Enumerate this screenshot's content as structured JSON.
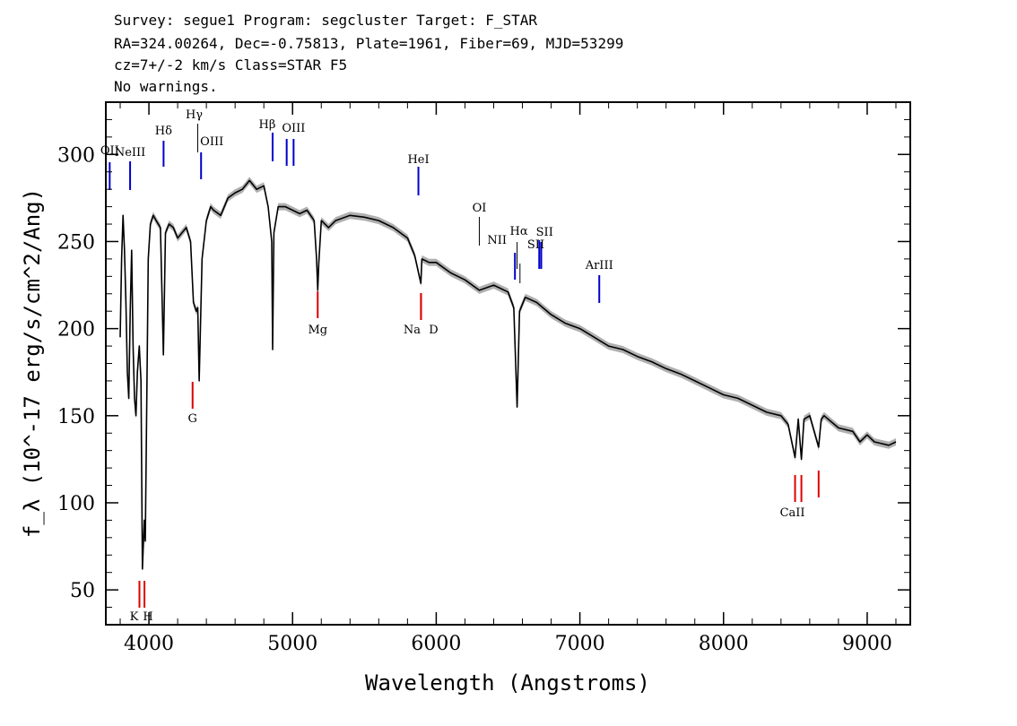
{
  "header": {
    "line1": "Survey: segue1 Program: segcluster Target: F_STAR",
    "line2": "RA=324.00264, Dec=-0.75813, Plate=1961, Fiber=69, MJD=53299",
    "line3": "cz=7+/-2 km/s Class=STAR F5",
    "line4": "No warnings."
  },
  "chart_data": {
    "type": "line",
    "title": "",
    "xlabel": "Wavelength (Angstroms)",
    "ylabel": "f_λ (10^-17 erg/s/cm^2/Ang)",
    "xlim": [
      3700,
      9300
    ],
    "ylim": [
      30,
      330
    ],
    "xticks": [
      4000,
      5000,
      6000,
      7000,
      8000,
      9000
    ],
    "yticks": [
      50,
      100,
      150,
      200,
      250,
      300
    ],
    "grid": false,
    "legend": "none",
    "colors": {
      "spectrum": "#000000",
      "error_band": "#b0b0b0",
      "emission": "#0000cc",
      "absorption": "#dd0000"
    },
    "series": [
      {
        "x": [
          3800,
          3810,
          3820,
          3830,
          3840,
          3850,
          3860,
          3870,
          3880,
          3890,
          3900,
          3910,
          3920,
          3933,
          3945,
          3955,
          3968,
          3975,
          3985,
          3995,
          4010,
          4030,
          4050,
          4080,
          4101,
          4115,
          4140,
          4170,
          4200,
          4230,
          4260,
          4290,
          4310,
          4330,
          4340,
          4350,
          4370,
          4400,
          4430,
          4450,
          4500,
          4550,
          4600,
          4650,
          4700,
          4750,
          4800,
          4830,
          4855,
          4861,
          4870,
          4900,
          4950,
          5000,
          5050,
          5100,
          5150,
          5167,
          5175,
          5183,
          5200,
          5250,
          5300,
          5400,
          5500,
          5600,
          5700,
          5800,
          5850,
          5893,
          5900,
          5950,
          6000,
          6100,
          6200,
          6300,
          6400,
          6500,
          6540,
          6563,
          6580,
          6620,
          6700,
          6800,
          6900,
          7000,
          7100,
          7200,
          7300,
          7400,
          7500,
          7600,
          7700,
          7800,
          7900,
          8000,
          8100,
          8200,
          8300,
          8400,
          8450,
          8498,
          8520,
          8542,
          8560,
          8600,
          8662,
          8680,
          8700,
          8800,
          8900,
          8950,
          9000,
          9050,
          9100,
          9150,
          9200
        ],
        "values": [
          195,
          240,
          265,
          245,
          215,
          175,
          160,
          210,
          245,
          190,
          160,
          150,
          175,
          190,
          170,
          62,
          90,
          78,
          160,
          240,
          260,
          265,
          262,
          258,
          185,
          255,
          260,
          258,
          252,
          255,
          258,
          250,
          215,
          210,
          212,
          170,
          240,
          262,
          270,
          268,
          265,
          275,
          278,
          280,
          285,
          280,
          282,
          270,
          250,
          188,
          255,
          270,
          270,
          268,
          266,
          268,
          262,
          240,
          222,
          238,
          262,
          258,
          262,
          265,
          264,
          262,
          258,
          252,
          242,
          226,
          240,
          238,
          238,
          232,
          228,
          222,
          225,
          221,
          212,
          155,
          210,
          218,
          215,
          208,
          203,
          200,
          195,
          190,
          188,
          184,
          181,
          177,
          174,
          170,
          166,
          162,
          160,
          156,
          152,
          150,
          145,
          126,
          148,
          125,
          148,
          150,
          132,
          148,
          150,
          143,
          141,
          135,
          139,
          135,
          134,
          133,
          135
        ]
      }
    ],
    "emission_lines": [
      {
        "label": "OII",
        "wavelength": 3727
      },
      {
        "label": "NeIII",
        "wavelength": 3869
      },
      {
        "label": "Hδ",
        "wavelength": 4102
      },
      {
        "label": "Hγ",
        "wavelength": 4340
      },
      {
        "label": "OIII",
        "wavelength": 4363
      },
      {
        "label": "Hβ",
        "wavelength": 4861
      },
      {
        "label": "OIII",
        "wavelength": 4959
      },
      {
        "label": "OIII",
        "wavelength": 5007
      },
      {
        "label": "HeI",
        "wavelength": 5876
      },
      {
        "label": "OI",
        "wavelength": 6300
      },
      {
        "label": "NII",
        "wavelength": 6548
      },
      {
        "label": "Hα",
        "wavelength": 6563
      },
      {
        "label": "NII",
        "wavelength": 6583
      },
      {
        "label": "SII",
        "wavelength": 6717
      },
      {
        "label": "SII",
        "wavelength": 6731
      },
      {
        "label": "ArIII",
        "wavelength": 7135
      }
    ],
    "absorption_lines": [
      {
        "label": "K",
        "wavelength": 3934
      },
      {
        "label": "H",
        "wavelength": 3969
      },
      {
        "label": "G",
        "wavelength": 4304
      },
      {
        "label": "Mg",
        "wavelength": 5175
      },
      {
        "label": "Na",
        "wavelength": 5894
      },
      {
        "label": "D",
        "wavelength": 5894
      },
      {
        "label": "CaII",
        "wavelength": 8498
      },
      {
        "label": "CaII",
        "wavelength": 8542
      },
      {
        "label": "CaII",
        "wavelength": 8662
      }
    ]
  }
}
